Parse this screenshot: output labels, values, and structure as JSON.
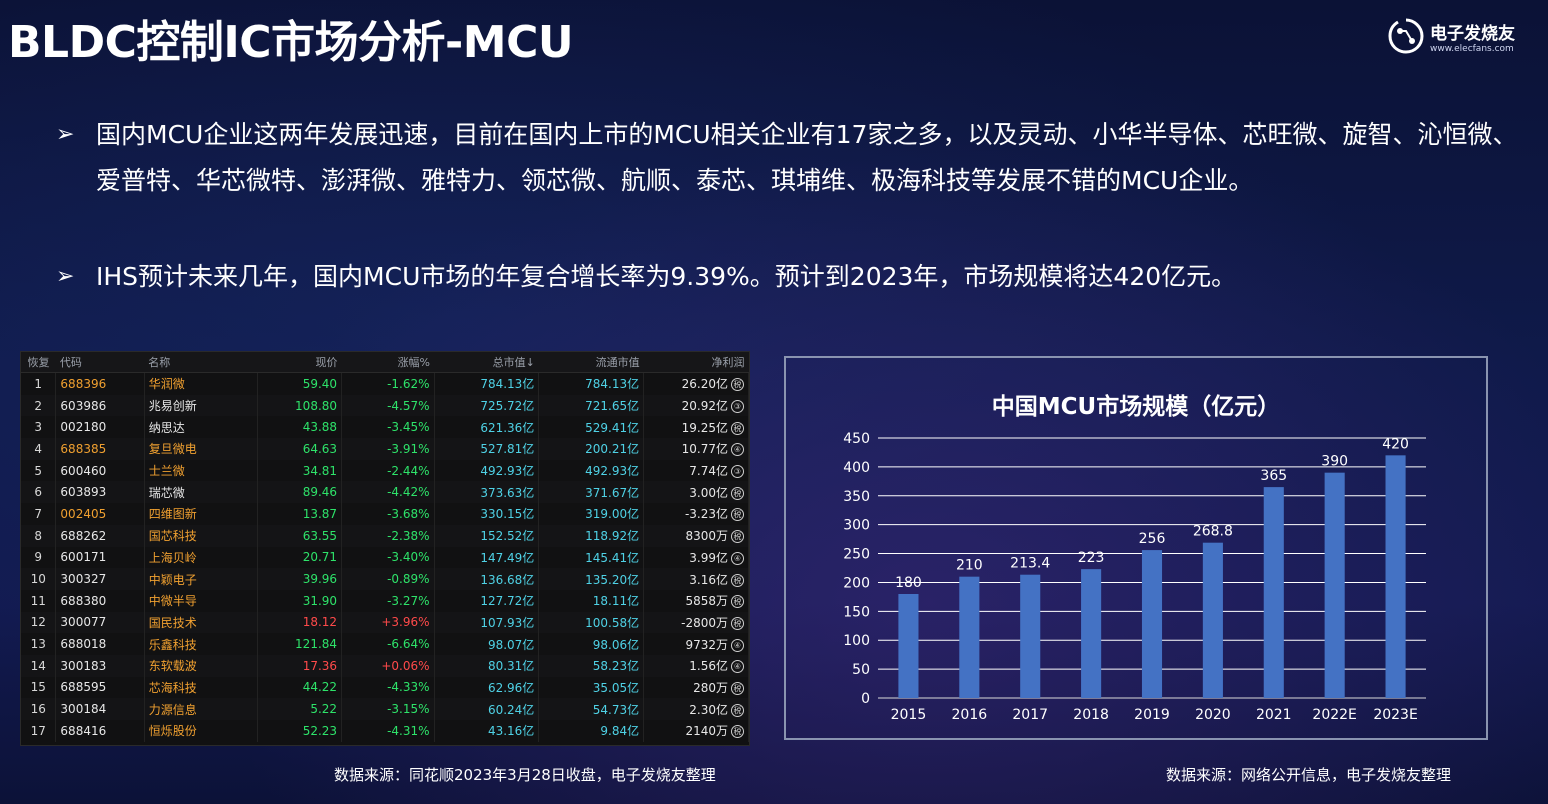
{
  "header": {
    "title": "BLDC控制IC市场分析-MCU",
    "logo_name": "电子发烧友",
    "logo_url": "www.elecfans.com"
  },
  "bullets": [
    "国内MCU企业这两年发展迅速，目前在国内上市的MCU相关企业有17家之多，以及灵动、小华半导体、芯旺微、旋智、沁恒微、爱普特、华芯微特、澎湃微、雅特力、领芯微、航顺、泰芯、琪埔维、极海科技等发展不错的MCU企业。",
    "IHS预计未来几年，国内MCU市场的年复合增长率为9.39%。预计到2023年，市场规模将达420亿元。"
  ],
  "stock_table": {
    "columns": [
      "恢复",
      "代码",
      "名称",
      "现价",
      "涨幅%",
      "总市值↓",
      "流通市值",
      "净利润"
    ],
    "rows": [
      {
        "idx": "1",
        "code": "688396",
        "name": "华润微",
        "price": "59.40",
        "change": "-1.62%",
        "mcap": "784.13亿",
        "float": "784.13亿",
        "profit": "26.20亿",
        "icon": "税"
      },
      {
        "idx": "2",
        "code": "603986",
        "name": "兆易创新",
        "price": "108.80",
        "change": "-4.57%",
        "mcap": "725.72亿",
        "float": "721.65亿",
        "profit": "20.92亿",
        "icon": "③"
      },
      {
        "idx": "3",
        "code": "002180",
        "name": "纳思达",
        "price": "43.88",
        "change": "-3.45%",
        "mcap": "621.36亿",
        "float": "529.41亿",
        "profit": "19.25亿",
        "icon": "税"
      },
      {
        "idx": "4",
        "code": "688385",
        "name": "复旦微电",
        "price": "64.63",
        "change": "-3.91%",
        "mcap": "527.81亿",
        "float": "200.21亿",
        "profit": "10.77亿",
        "icon": "④"
      },
      {
        "idx": "5",
        "code": "600460",
        "name": "士兰微",
        "price": "34.81",
        "change": "-2.44%",
        "mcap": "492.93亿",
        "float": "492.93亿",
        "profit": "7.74亿",
        "icon": "③"
      },
      {
        "idx": "6",
        "code": "603893",
        "name": "瑞芯微",
        "price": "89.46",
        "change": "-4.42%",
        "mcap": "373.63亿",
        "float": "371.67亿",
        "profit": "3.00亿",
        "icon": "税"
      },
      {
        "idx": "7",
        "code": "002405",
        "name": "四维图新",
        "price": "13.87",
        "change": "-3.68%",
        "mcap": "330.15亿",
        "float": "319.00亿",
        "profit": "-3.23亿",
        "icon": "税"
      },
      {
        "idx": "8",
        "code": "688262",
        "name": "国芯科技",
        "price": "63.55",
        "change": "-2.38%",
        "mcap": "152.52亿",
        "float": "118.92亿",
        "profit": "8300万",
        "icon": "税"
      },
      {
        "idx": "9",
        "code": "600171",
        "name": "上海贝岭",
        "price": "20.71",
        "change": "-3.40%",
        "mcap": "147.49亿",
        "float": "145.41亿",
        "profit": "3.99亿",
        "icon": "④"
      },
      {
        "idx": "10",
        "code": "300327",
        "name": "中颖电子",
        "price": "39.96",
        "change": "-0.89%",
        "mcap": "136.68亿",
        "float": "135.20亿",
        "profit": "3.16亿",
        "icon": "税"
      },
      {
        "idx": "11",
        "code": "688380",
        "name": "中微半导",
        "price": "31.90",
        "change": "-3.27%",
        "mcap": "127.72亿",
        "float": "18.11亿",
        "profit": "5858万",
        "icon": "税"
      },
      {
        "idx": "12",
        "code": "300077",
        "name": "国民技术",
        "price": "18.12",
        "change": "+3.96%",
        "mcap": "107.93亿",
        "float": "100.58亿",
        "profit": "-2800万",
        "icon": "税"
      },
      {
        "idx": "13",
        "code": "688018",
        "name": "乐鑫科技",
        "price": "121.84",
        "change": "-6.64%",
        "mcap": "98.07亿",
        "float": "98.06亿",
        "profit": "9732万",
        "icon": "④"
      },
      {
        "idx": "14",
        "code": "300183",
        "name": "东软载波",
        "price": "17.36",
        "change": "+0.06%",
        "mcap": "80.31亿",
        "float": "58.23亿",
        "profit": "1.56亿",
        "icon": "④"
      },
      {
        "idx": "15",
        "code": "688595",
        "name": "芯海科技",
        "price": "44.22",
        "change": "-4.33%",
        "mcap": "62.96亿",
        "float": "35.05亿",
        "profit": "280万",
        "icon": "税"
      },
      {
        "idx": "16",
        "code": "300184",
        "name": "力源信息",
        "price": "5.22",
        "change": "-3.15%",
        "mcap": "60.24亿",
        "float": "54.73亿",
        "profit": "2.30亿",
        "icon": "税"
      },
      {
        "idx": "17",
        "code": "688416",
        "name": "恒烁股份",
        "price": "52.23",
        "change": "-4.31%",
        "mcap": "43.16亿",
        "float": "9.84亿",
        "profit": "2140万",
        "icon": "税"
      }
    ]
  },
  "chart_data": {
    "type": "bar",
    "title": "中国MCU市场规模（亿元）",
    "categories": [
      "2015",
      "2016",
      "2017",
      "2018",
      "2019",
      "2020",
      "2021",
      "2022E",
      "2023E"
    ],
    "values": [
      180,
      210,
      213.4,
      223,
      256,
      268.8,
      365,
      390,
      420
    ],
    "value_labels": [
      "180",
      "210",
      "213.4",
      "223",
      "256",
      "268.8",
      "365",
      "390",
      "420"
    ],
    "ylim": [
      0,
      450
    ],
    "yticks": [
      "0",
      "50",
      "100",
      "150",
      "200",
      "250",
      "300",
      "350",
      "400",
      "450"
    ],
    "grid": true,
    "bar_color": "#4472c4"
  },
  "sources": {
    "left": "数据来源：同花顺2023年3月28日收盘，电子发烧友整理",
    "right": "数据来源：网络公开信息，电子发烧友整理"
  }
}
